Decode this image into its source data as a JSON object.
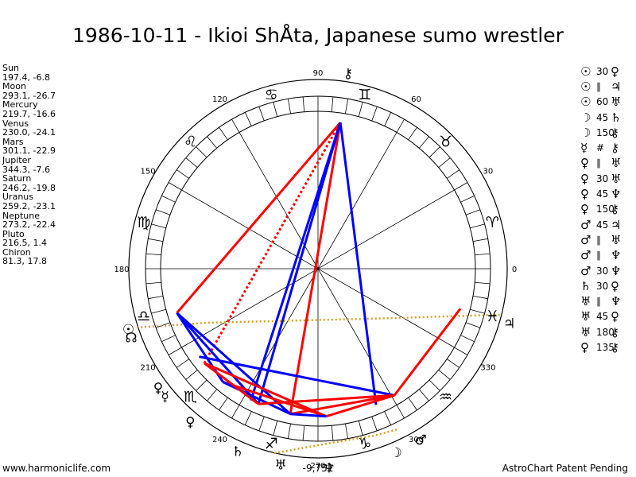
{
  "title": "1986-10-11 - Ikioi ShÅta, Japanese sumo wrestler",
  "planets": [
    {
      "name": "Sun",
      "coords": "197.4, -6.8"
    },
    {
      "name": "Moon",
      "coords": "293.1, -26.7"
    },
    {
      "name": "Mercury",
      "coords": "219.7, -16.6"
    },
    {
      "name": "Venus",
      "coords": "230.0, -24.1"
    },
    {
      "name": "Mars",
      "coords": "301.1, -22.9"
    },
    {
      "name": "Jupiter",
      "coords": "344.3, -7.6"
    },
    {
      "name": "Saturn",
      "coords": "246.2, -19.8"
    },
    {
      "name": "Uranus",
      "coords": "259.2, -23.1"
    },
    {
      "name": "Neptune",
      "coords": "273.2, -22.4"
    },
    {
      "name": "Pluto",
      "coords": "216.5, 1.4"
    },
    {
      "name": "Chiron",
      "coords": "81.3, 17.8"
    }
  ],
  "aspects": [
    {
      "p1": "☉",
      "angle": "30",
      "p2": "♀"
    },
    {
      "p1": "☉",
      "angle": "∥",
      "p2": "♃"
    },
    {
      "p1": "☉",
      "angle": "60",
      "p2": "♅"
    },
    {
      "p1": "☽",
      "angle": "45",
      "p2": "♄"
    },
    {
      "p1": "☽",
      "angle": "150",
      "p2": "⚷"
    },
    {
      "p1": "☿",
      "angle": "#",
      "p2": "⚷"
    },
    {
      "p1": "♀",
      "angle": "∥",
      "p2": "♅"
    },
    {
      "p1": "♀",
      "angle": "30",
      "p2": "♅"
    },
    {
      "p1": "♀",
      "angle": "45",
      "p2": "♆"
    },
    {
      "p1": "♀",
      "angle": "150",
      "p2": "⚷"
    },
    {
      "p1": "♂",
      "angle": "45",
      "p2": "♃"
    },
    {
      "p1": "♂",
      "angle": "∥",
      "p2": "♅"
    },
    {
      "p1": "♂",
      "angle": "∥",
      "p2": "♆"
    },
    {
      "p1": "♂",
      "angle": "30",
      "p2": "♆"
    },
    {
      "p1": "♄",
      "angle": "30",
      "p2": "♀"
    },
    {
      "p1": "♅",
      "angle": "∥",
      "p2": "♆"
    },
    {
      "p1": "♅",
      "angle": "45",
      "p2": "♀"
    },
    {
      "p1": "♅",
      "angle": "180",
      "p2": "⚷"
    },
    {
      "p1": "♀",
      "angle": "135",
      "p2": "⚷"
    }
  ],
  "wheel": {
    "degree_labels": [
      {
        "text": "0",
        "angle": 0
      },
      {
        "text": "30",
        "angle": 30
      },
      {
        "text": "60",
        "angle": 60
      },
      {
        "text": "90",
        "angle": 90
      },
      {
        "text": "120",
        "angle": 120
      },
      {
        "text": "150",
        "angle": 150
      },
      {
        "text": "180",
        "angle": 180
      },
      {
        "text": "210",
        "angle": 210
      },
      {
        "text": "240",
        "angle": 240
      },
      {
        "text": "270",
        "angle": 270
      },
      {
        "text": "300",
        "angle": 300
      },
      {
        "text": "330",
        "angle": 330
      }
    ],
    "zodiac_signs": [
      {
        "symbol": "♈",
        "name": "aries",
        "angle": 15
      },
      {
        "symbol": "♉",
        "name": "taurus",
        "angle": 45
      },
      {
        "symbol": "♊",
        "name": "gemini",
        "angle": 75
      },
      {
        "symbol": "♋",
        "name": "cancer",
        "angle": 105
      },
      {
        "symbol": "♌",
        "name": "leo",
        "angle": 135
      },
      {
        "symbol": "♍",
        "name": "virgo",
        "angle": 165
      },
      {
        "symbol": "♎",
        "name": "libra",
        "angle": 195
      },
      {
        "symbol": "♏",
        "name": "scorpio",
        "angle": 225
      },
      {
        "symbol": "♐",
        "name": "sagittarius",
        "angle": 255
      },
      {
        "symbol": "♑",
        "name": "capricorn",
        "angle": 285
      },
      {
        "symbol": "♒",
        "name": "aquarius",
        "angle": 315
      },
      {
        "symbol": "♓",
        "name": "pisces",
        "angle": 345
      }
    ],
    "planet_glyphs": [
      {
        "symbol": "☉",
        "name": "sun",
        "lon": 197.4
      },
      {
        "symbol": "☽",
        "name": "moon",
        "lon": 293.1
      },
      {
        "symbol": "☿",
        "name": "mercury",
        "lon": 219.7
      },
      {
        "symbol": "♀",
        "name": "venus",
        "lon": 230.0
      },
      {
        "symbol": "♂",
        "name": "mars",
        "lon": 301.1
      },
      {
        "symbol": "♃",
        "name": "jupiter",
        "lon": 344.3
      },
      {
        "symbol": "♄",
        "name": "saturn",
        "lon": 246.2
      },
      {
        "symbol": "♅",
        "name": "uranus",
        "lon": 259.2
      },
      {
        "symbol": "♆",
        "name": "neptune",
        "lon": 273.2
      },
      {
        "symbol": "♀",
        "name": "pluto",
        "lon": 216.5
      },
      {
        "symbol": "⚷",
        "name": "chiron",
        "lon": 81.3
      },
      {
        "symbol": "☊",
        "name": "node",
        "lon": 200.0
      }
    ],
    "center_label": "-9,751",
    "aspect_lines": [
      {
        "from": 197.4,
        "to": 81.3,
        "color": "#ff0000",
        "style": "solid"
      },
      {
        "from": 219.7,
        "to": 81.3,
        "color": "#ff0000",
        "style": "dotted"
      },
      {
        "from": 259.2,
        "to": 81.3,
        "color": "#ff0000",
        "style": "solid"
      },
      {
        "from": 246.2,
        "to": 81.3,
        "color": "#0000ff",
        "style": "solid"
      },
      {
        "from": 293.1,
        "to": 81.3,
        "color": "#0000ff",
        "style": "solid"
      },
      {
        "from": 81.3,
        "to": 243.0,
        "color": "#0000ff",
        "style": "solid"
      },
      {
        "from": 197.4,
        "to": 259.2,
        "color": "#0000ff",
        "style": "solid"
      },
      {
        "from": 197.4,
        "to": 246.2,
        "color": "#0000ff",
        "style": "solid"
      },
      {
        "from": 197.4,
        "to": 230.0,
        "color": "#0000ff",
        "style": "solid"
      },
      {
        "from": 219.7,
        "to": 273.2,
        "color": "#ff0000",
        "style": "solid"
      },
      {
        "from": 230.0,
        "to": 273.2,
        "color": "#ff0000",
        "style": "solid"
      },
      {
        "from": 230.0,
        "to": 259.2,
        "color": "#0000ff",
        "style": "solid"
      },
      {
        "from": 216.5,
        "to": 301.1,
        "color": "#0000ff",
        "style": "solid"
      },
      {
        "from": 246.2,
        "to": 301.1,
        "color": "#ff0000",
        "style": "solid"
      },
      {
        "from": 259.2,
        "to": 301.1,
        "color": "#ff0000",
        "style": "solid"
      },
      {
        "from": 273.2,
        "to": 301.1,
        "color": "#ff0000",
        "style": "solid"
      },
      {
        "from": 301.1,
        "to": 344.3,
        "color": "#ff0000",
        "style": "solid"
      },
      {
        "from": 259.2,
        "to": 273.2,
        "color": "#0000ff",
        "style": "solid"
      },
      {
        "from": 219.7,
        "to": 246.2,
        "color": "#ff0000",
        "style": "solid"
      }
    ],
    "colors": {
      "red": "#ff0000",
      "blue": "#0000ff",
      "dotted_gold": "#d4a020"
    }
  },
  "footer": {
    "left": "www.harmoniclife.com",
    "right": "AstroChart Patent Pending"
  }
}
